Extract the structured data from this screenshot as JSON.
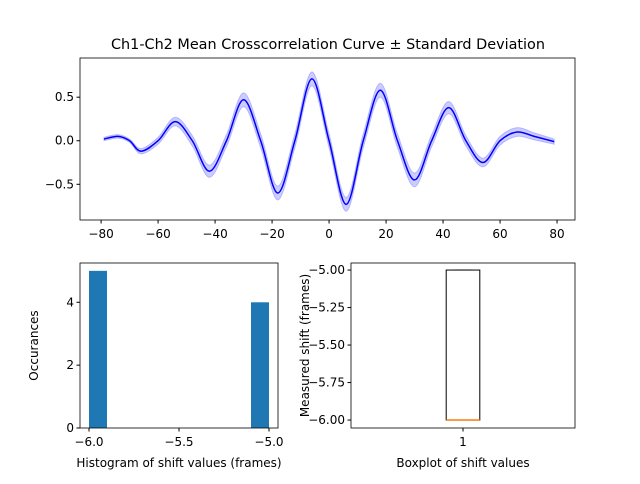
{
  "chart_data": [
    {
      "type": "line",
      "title": "Ch1-Ch2 Mean Crosscorrelation Curve ± Standard Deviation",
      "x": [
        -79,
        -74,
        -70,
        -66,
        -60,
        -54,
        -48,
        -42,
        -36,
        -30,
        -24,
        -18,
        -12,
        -6,
        0,
        6,
        12,
        18,
        24,
        30,
        36,
        42,
        48,
        54,
        60,
        66,
        72,
        79
      ],
      "series": [
        {
          "color": "#0000ff",
          "values": [
            0.02,
            0.05,
            0.0,
            -0.12,
            0.0,
            0.22,
            0.0,
            -0.35,
            0.0,
            0.47,
            0.0,
            -0.6,
            0.0,
            0.71,
            0.0,
            -0.73,
            0.0,
            0.58,
            0.0,
            -0.45,
            0.0,
            0.38,
            0.0,
            -0.25,
            0.0,
            0.1,
            0.05,
            -0.01
          ],
          "std": [
            0.02,
            0.02,
            0.02,
            0.03,
            0.04,
            0.05,
            0.06,
            0.07,
            0.07,
            0.08,
            0.08,
            0.08,
            0.08,
            0.08,
            0.08,
            0.08,
            0.08,
            0.08,
            0.08,
            0.08,
            0.07,
            0.07,
            0.06,
            0.05,
            0.05,
            0.05,
            0.04,
            0.03
          ]
        }
      ],
      "xlim": [
        -87.4,
        86.3
      ],
      "xticks": [
        {
          "value": -80,
          "label": "−80"
        },
        {
          "value": -60,
          "label": "−60"
        },
        {
          "value": -40,
          "label": "−40"
        },
        {
          "value": -20,
          "label": "−20"
        },
        0,
        20,
        40,
        60,
        80
      ],
      "ylim": [
        -0.91,
        0.95
      ],
      "yticks": [
        {
          "value": -0.5,
          "label": "−0.5"
        },
        {
          "value": 0,
          "label": "0.0"
        },
        0.5
      ]
    },
    {
      "type": "histogram",
      "xlabel": "Histogram of shift values (frames)",
      "ylabel": "Occurances",
      "color": "#1f77b4",
      "bins": [
        -6,
        -5.9,
        -5.8,
        -5.7,
        -5.6,
        -5.5,
        -5.4,
        -5.3,
        -5.2,
        -5.1,
        -5
      ],
      "counts": [
        5,
        0,
        0,
        0,
        0,
        0,
        0,
        0,
        0,
        4
      ],
      "xlim": [
        -6.05,
        -4.95
      ],
      "xticks": [
        {
          "value": -6,
          "label": "−6.0"
        },
        {
          "value": -5.5,
          "label": "−5.5"
        },
        {
          "value": -5,
          "label": "−5.0"
        }
      ],
      "ylim": [
        0,
        5.25
      ],
      "yticks": [
        0,
        2,
        4
      ]
    },
    {
      "type": "box",
      "xlabel": "Boxplot of shift values",
      "ylabel": "Measured shift (frames)",
      "categories": [
        "1"
      ],
      "whisker_low": -6,
      "q1": -6,
      "median": -6,
      "q3": -5,
      "whisker_high": -5,
      "median_color": "#ff7f0e",
      "ylim": [
        -6.053,
        -4.953
      ],
      "yticks": [
        {
          "value": -6,
          "label": "−6.00"
        },
        {
          "value": -5.75,
          "label": "−5.75"
        },
        {
          "value": -5.5,
          "label": "−5.50"
        },
        {
          "value": -5.25,
          "label": "−5.25"
        },
        {
          "value": -5,
          "label": "−5.00"
        }
      ]
    }
  ]
}
